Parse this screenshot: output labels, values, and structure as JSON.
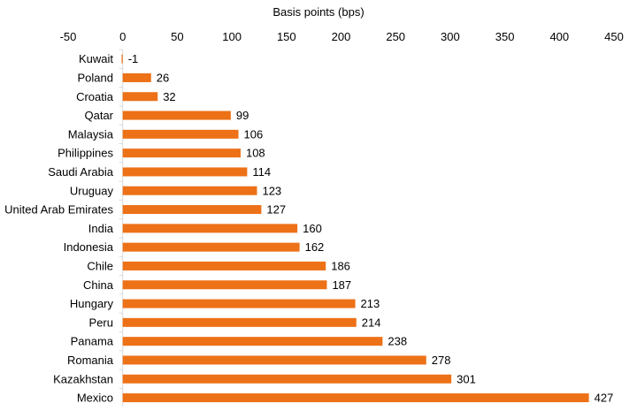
{
  "chart_data": {
    "type": "bar",
    "orientation": "horizontal",
    "xlabel": "Basis points (bps)",
    "ylabel": "",
    "xlim": [
      -50,
      450
    ],
    "xticks": [
      -50,
      0,
      50,
      100,
      150,
      200,
      250,
      300,
      350,
      400,
      450
    ],
    "xaxis_position": "top",
    "grid": false,
    "legend": "none",
    "bar_color": "#ED7117",
    "axis_color": "#D9D9D9",
    "categories": [
      "Kuwait",
      "Poland",
      "Croatia",
      "Qatar",
      "Malaysia",
      "Philippines",
      "Saudi Arabia",
      "Uruguay",
      "United Arab Emirates",
      "India",
      "Indonesia",
      "Chile",
      "China",
      "Hungary",
      "Peru",
      "Panama",
      "Romania",
      "Kazakhstan",
      "Mexico"
    ],
    "values": [
      -1,
      26,
      32,
      99,
      106,
      108,
      114,
      123,
      127,
      160,
      162,
      186,
      187,
      213,
      214,
      238,
      278,
      301,
      427
    ],
    "data_labels": [
      "-1",
      "26",
      "32",
      "99",
      "106",
      "108",
      "114",
      "123",
      "127",
      "160",
      "162",
      "186",
      "187",
      "213",
      "214",
      "238",
      "278",
      "301",
      "427"
    ]
  }
}
